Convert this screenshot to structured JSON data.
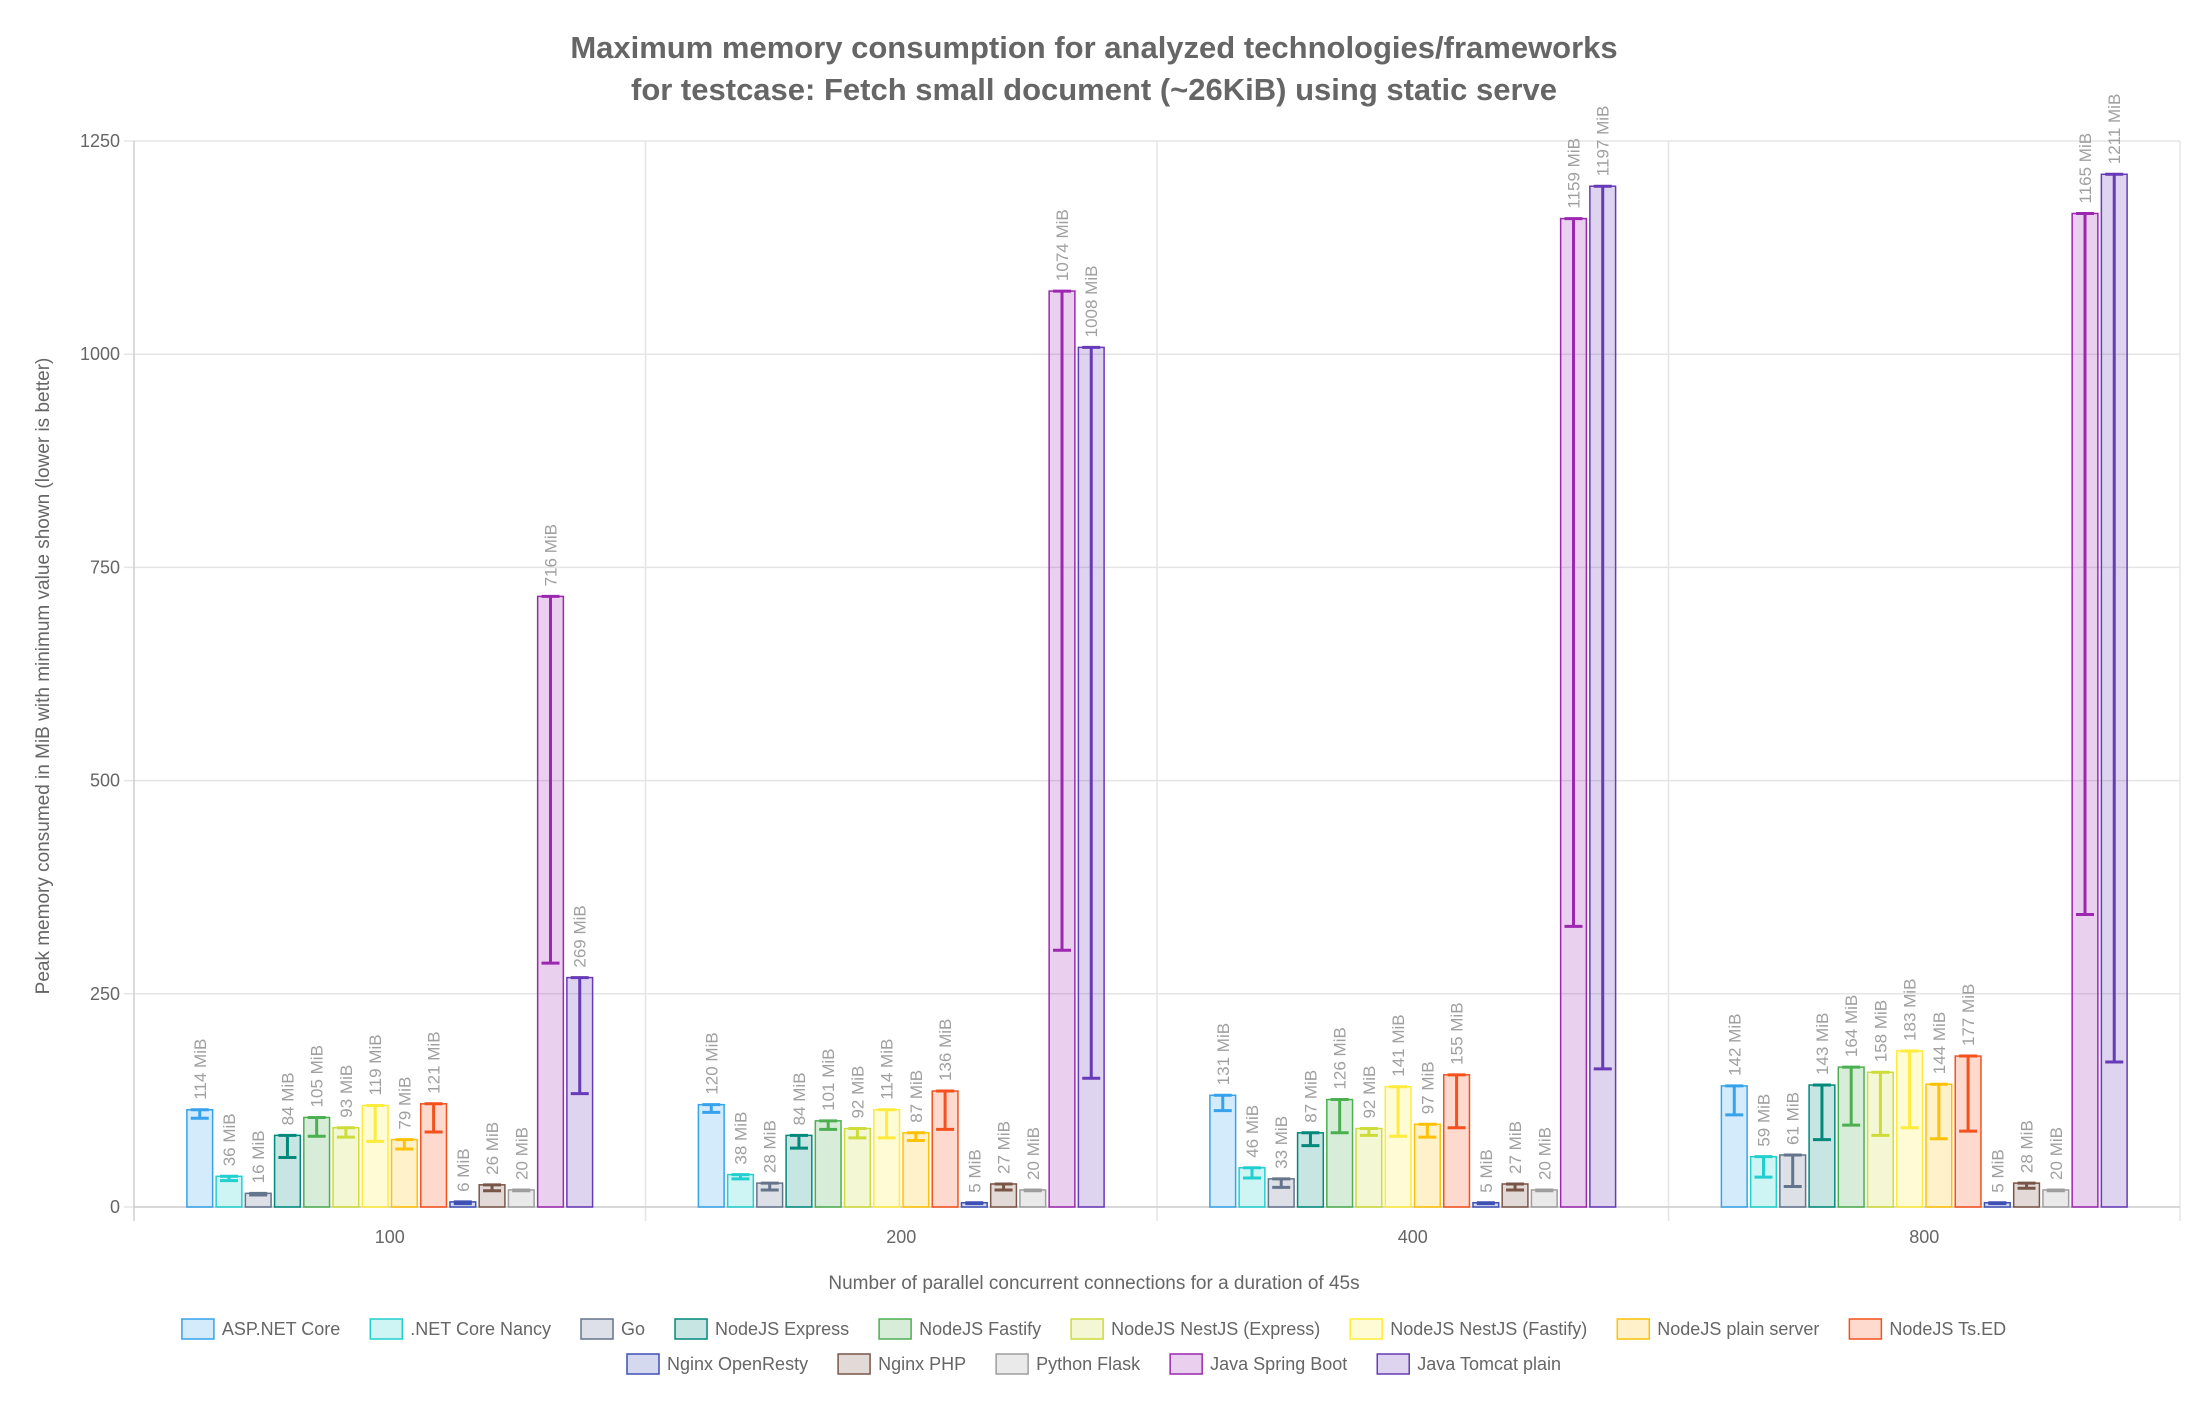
{
  "chart_data": {
    "type": "bar",
    "title": [
      "Maximum memory consumption for analyzed technologies/frameworks",
      "for testcase: Fetch small document (~26KiB) using static serve"
    ],
    "xlabel": "Number of parallel concurrent connections for a duration of 45s",
    "ylabel": "Peak memory consumed in MiB with minimum value shown (lower is better)",
    "ylim": [
      0,
      1250
    ],
    "yticks": [
      "0",
      "250",
      "500",
      "750",
      "1000",
      "1250"
    ],
    "categories": [
      "100",
      "200",
      "400",
      "800"
    ],
    "grid": true,
    "legend_position": "bottom",
    "value_suffix": " MiB",
    "series": [
      {
        "name": "ASP.NET Core",
        "color": "#36a2eb",
        "values": [
          114,
          120,
          131,
          142
        ],
        "min": [
          104,
          111,
          113,
          108
        ]
      },
      {
        "name": ".NET Core Nancy",
        "color": "#22cfcf",
        "values": [
          36,
          38,
          46,
          59
        ],
        "min": [
          31,
          33,
          34,
          35
        ]
      },
      {
        "name": "Go",
        "color": "#64748b",
        "values": [
          16,
          28,
          33,
          61
        ],
        "min": [
          14,
          20,
          23,
          24
        ]
      },
      {
        "name": "NodeJS Express",
        "color": "#00897b",
        "values": [
          84,
          84,
          87,
          143
        ],
        "min": [
          58,
          69,
          72,
          79
        ]
      },
      {
        "name": "NodeJS Fastify",
        "color": "#4caf50",
        "values": [
          105,
          101,
          126,
          164
        ],
        "min": [
          83,
          91,
          87,
          96
        ]
      },
      {
        "name": "NodeJS NestJS (Express)",
        "color": "#cddc39",
        "values": [
          93,
          92,
          92,
          158
        ],
        "min": [
          82,
          81,
          84,
          84
        ]
      },
      {
        "name": "NodeJS NestJS (Fastify)",
        "color": "#ffeb3b",
        "values": [
          119,
          114,
          141,
          183
        ],
        "min": [
          77,
          81,
          83,
          93
        ]
      },
      {
        "name": "NodeJS plain server",
        "color": "#ffc107",
        "values": [
          79,
          87,
          97,
          144
        ],
        "min": [
          68,
          78,
          82,
          80
        ]
      },
      {
        "name": "NodeJS Ts.ED",
        "color": "#f4511e",
        "values": [
          121,
          136,
          155,
          177
        ],
        "min": [
          88,
          91,
          93,
          89
        ]
      },
      {
        "name": "Nginx OpenResty",
        "color": "#3f51b5",
        "values": [
          6,
          5,
          5,
          5
        ],
        "min": [
          4,
          4,
          4,
          4
        ]
      },
      {
        "name": "Nginx PHP",
        "color": "#795548",
        "values": [
          26,
          27,
          27,
          28
        ],
        "min": [
          19,
          20,
          20,
          22
        ]
      },
      {
        "name": "Python Flask",
        "color": "#9e9e9e",
        "values": [
          20,
          20,
          20,
          20
        ],
        "min": [
          19,
          19,
          19,
          19
        ]
      },
      {
        "name": "Java Spring Boot",
        "color": "#9c27b0",
        "values": [
          716,
          1074,
          1159,
          1165
        ],
        "min": [
          286,
          301,
          329,
          343
        ]
      },
      {
        "name": "Java Tomcat plain",
        "color": "#673ab7",
        "values": [
          269,
          1008,
          1197,
          1211
        ],
        "min": [
          133,
          151,
          162,
          170
        ]
      }
    ]
  }
}
